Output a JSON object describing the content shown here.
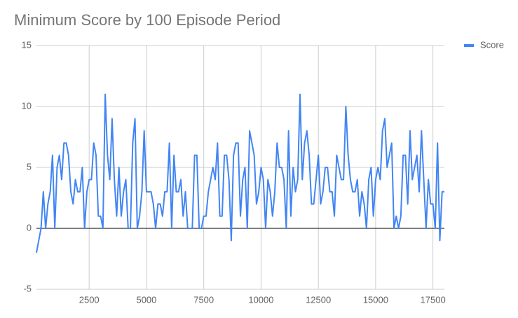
{
  "chart_data": {
    "type": "line",
    "title": "Minimum Score by 100 Episode Period",
    "x": [
      200,
      300,
      400,
      500,
      600,
      700,
      800,
      900,
      1000,
      1100,
      1200,
      1300,
      1400,
      1500,
      1600,
      1700,
      1800,
      1900,
      2000,
      2100,
      2200,
      2300,
      2400,
      2500,
      2600,
      2700,
      2800,
      2900,
      3000,
      3100,
      3200,
      3300,
      3400,
      3500,
      3600,
      3700,
      3800,
      3900,
      4000,
      4100,
      4200,
      4300,
      4400,
      4500,
      4600,
      4700,
      4800,
      4900,
      5000,
      5100,
      5200,
      5300,
      5400,
      5500,
      5600,
      5700,
      5800,
      5900,
      6000,
      6100,
      6200,
      6300,
      6400,
      6500,
      6600,
      6700,
      6800,
      6900,
      7000,
      7100,
      7200,
      7300,
      7400,
      7500,
      7600,
      7700,
      7800,
      7900,
      8000,
      8100,
      8200,
      8300,
      8400,
      8500,
      8600,
      8700,
      8800,
      8900,
      9000,
      9100,
      9200,
      9300,
      9400,
      9500,
      9600,
      9700,
      9800,
      9900,
      10000,
      10100,
      10200,
      10300,
      10400,
      10500,
      10600,
      10700,
      10800,
      10900,
      11000,
      11100,
      11200,
      11300,
      11400,
      11500,
      11600,
      11700,
      11800,
      11900,
      12000,
      12100,
      12200,
      12300,
      12400,
      12500,
      12600,
      12700,
      12800,
      12900,
      13000,
      13100,
      13200,
      13300,
      13400,
      13500,
      13600,
      13700,
      13800,
      13900,
      14000,
      14100,
      14200,
      14300,
      14400,
      14500,
      14600,
      14700,
      14800,
      14900,
      15000,
      15100,
      15200,
      15300,
      15400,
      15500,
      15600,
      15700,
      15800,
      15900,
      16000,
      16100,
      16200,
      16300,
      16400,
      16500,
      16600,
      16700,
      16800,
      16900,
      17000,
      17100,
      17200,
      17300,
      17400,
      17500,
      17600,
      17700,
      17800,
      17900,
      18000
    ],
    "series": [
      {
        "name": "Score",
        "color": "#4285f4",
        "values": [
          -2,
          -1,
          0,
          3,
          0,
          2,
          3,
          6,
          0,
          5,
          6,
          4,
          7,
          7,
          6,
          3,
          2,
          4,
          3,
          3,
          5,
          0,
          3,
          4,
          4,
          7,
          6,
          1,
          1,
          0,
          11,
          6,
          4,
          9,
          4,
          1,
          5,
          1,
          3,
          4,
          0,
          0,
          7,
          9,
          0,
          1,
          3,
          8,
          3,
          3,
          3,
          2,
          0,
          2,
          2,
          1,
          3,
          3,
          7,
          0,
          6,
          3,
          3,
          4,
          1,
          3,
          0,
          0,
          0,
          6,
          6,
          0,
          0,
          1,
          1,
          3,
          4,
          5,
          4,
          7,
          1,
          1,
          6,
          6,
          4,
          -1,
          6,
          7,
          7,
          1,
          4,
          5,
          0,
          8,
          7,
          6,
          2,
          3,
          5,
          4,
          0,
          4,
          3,
          1,
          3,
          7,
          5,
          5,
          4,
          0,
          8,
          1,
          5,
          3,
          4,
          11,
          4,
          7,
          8,
          6,
          2,
          2,
          4,
          6,
          2,
          3,
          5,
          5,
          3,
          3,
          1,
          6,
          5,
          4,
          4,
          10,
          6,
          4,
          3,
          3,
          4,
          1,
          3,
          2,
          0,
          4,
          5,
          1,
          4,
          5,
          4,
          8,
          9,
          5,
          6,
          7,
          0,
          1,
          0,
          1,
          6,
          6,
          2,
          8,
          4,
          5,
          6,
          3,
          8,
          4,
          0,
          4,
          2,
          2,
          0,
          7,
          -1,
          3,
          3
        ]
      }
    ],
    "xlim": [
      200,
      18000
    ],
    "xticks": [
      2500,
      5000,
      7500,
      10000,
      12500,
      15000,
      17500
    ],
    "ylim": [
      -5,
      15
    ],
    "yticks": [
      -5,
      0,
      5,
      10,
      15
    ],
    "grid": true,
    "legend": "right"
  }
}
